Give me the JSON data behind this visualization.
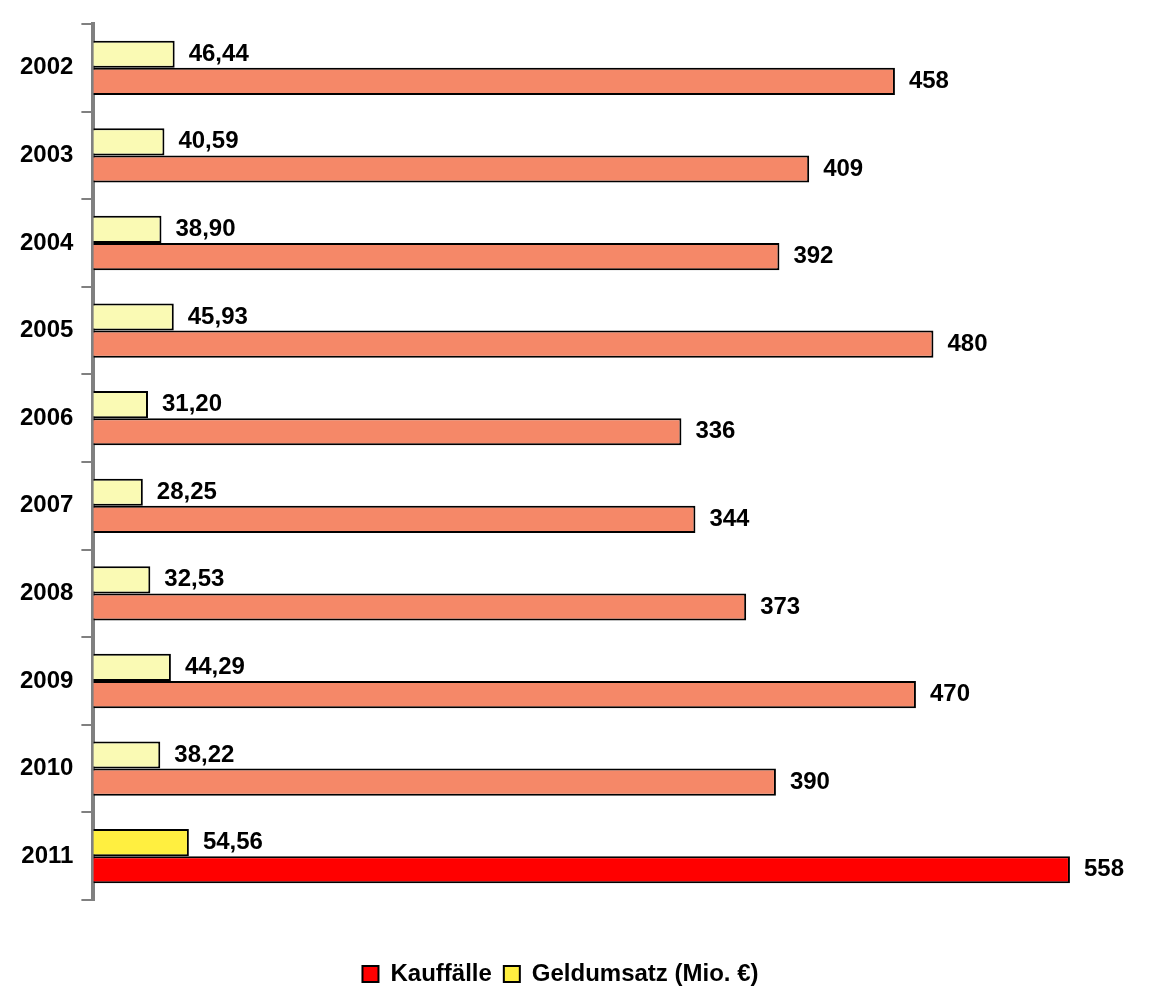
{
  "chart_data": {
    "type": "bar",
    "orientation": "horizontal",
    "categories": [
      "2002",
      "2003",
      "2004",
      "2005",
      "2006",
      "2007",
      "2008",
      "2009",
      "2010",
      "2011"
    ],
    "series": [
      {
        "name": "Kauffälle",
        "color": "#ff0000",
        "colors": [
          "#f58868",
          "#f58868",
          "#f58868",
          "#f58868",
          "#f58868",
          "#f58868",
          "#f58868",
          "#f58868",
          "#f58868",
          "#ff0000"
        ],
        "values": [
          458,
          409,
          392,
          480,
          336,
          344,
          373,
          470,
          390,
          558
        ],
        "value_labels": [
          "458",
          "409",
          "392",
          "480",
          "336",
          "344",
          "373",
          "470",
          "390",
          "558"
        ]
      },
      {
        "name": "Geldumsatz (Mio. €)",
        "color": "#ffef40",
        "colors": [
          "#fafab4",
          "#fafab4",
          "#fafab4",
          "#fafab4",
          "#fafab4",
          "#fafab4",
          "#fafab4",
          "#fafab4",
          "#fafab4",
          "#ffef40"
        ],
        "values": [
          46.44,
          40.59,
          38.9,
          45.93,
          31.2,
          28.25,
          32.53,
          44.29,
          38.22,
          54.56
        ],
        "value_labels": [
          "46,44",
          "40,59",
          "38,90",
          "45,93",
          "31,20",
          "28,25",
          "32,53",
          "44,29",
          "38,22",
          "54,56"
        ]
      }
    ],
    "legend": "bottom",
    "tick_labels": "y"
  }
}
